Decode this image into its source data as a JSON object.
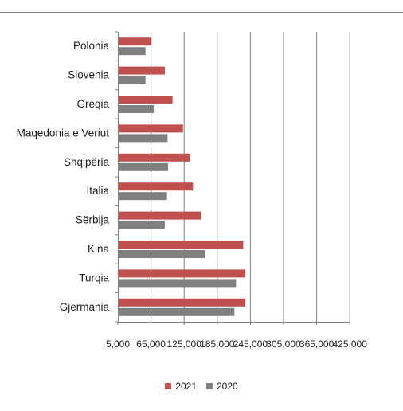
{
  "chart_data": {
    "type": "bar",
    "orientation": "horizontal",
    "categories": [
      "Polonia",
      "Slovenia",
      "Greqia",
      "Maqedonia e Veriut",
      "Shqipëria",
      "Italia",
      "Sërbija",
      "Kina",
      "Turqia",
      "Gjermania"
    ],
    "series": [
      {
        "name": "2021",
        "color": "#c0504d",
        "values": [
          66000,
          90000,
          104000,
          123000,
          136000,
          141000,
          156000,
          232000,
          236000,
          236000
        ]
      },
      {
        "name": "2020",
        "color": "#808080",
        "values": [
          55000,
          55000,
          70000,
          95000,
          96000,
          94000,
          90000,
          163000,
          219000,
          216000
        ]
      }
    ],
    "x_ticks": [
      "5,000",
      "65,000",
      "125,000",
      "185,000",
      "245,000",
      "305,000",
      "365,000",
      "425,000"
    ],
    "xlim": [
      5000,
      425000
    ],
    "grid": "vertical",
    "legend_position": "bottom"
  }
}
